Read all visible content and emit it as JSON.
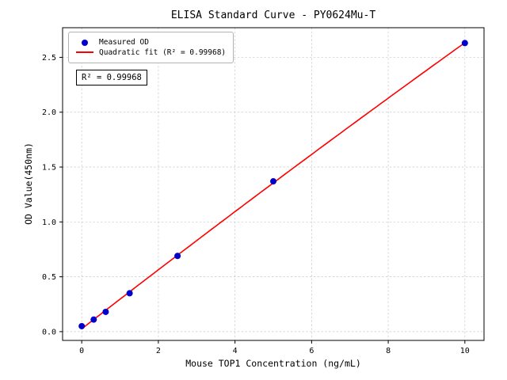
{
  "figure": {
    "title": "ELISA Standard Curve - PY0624Mu-T",
    "xlabel": "Mouse TOP1 Concentration (ng/mL)",
    "ylabel": "OD Value(450nm)",
    "annotation": "R² = 0.99968",
    "legend": [
      {
        "label": "Measured OD",
        "marker": "dot",
        "color": "#0000cd"
      },
      {
        "label": "Quadratic fit (R² = 0.99968)",
        "marker": "line",
        "color": "#ff0000"
      }
    ]
  },
  "chart_data": {
    "type": "scatter",
    "title": "ELISA Standard Curve - PY0624Mu-T",
    "xlabel": "Mouse TOP1 Concentration (ng/mL)",
    "ylabel": "OD Value(450nm)",
    "series": [
      {
        "name": "Measured OD",
        "type": "scatter",
        "color": "#0000cd",
        "x": [
          0,
          0.3125,
          0.625,
          1.25,
          2.5,
          5,
          10
        ],
        "y": [
          0.05,
          0.11,
          0.18,
          0.35,
          0.69,
          1.37,
          2.63
        ]
      },
      {
        "name": "Quadratic fit (R² = 0.99968)",
        "type": "line",
        "color": "#ff0000",
        "fit": "quadratic",
        "r_squared": 0.99968
      }
    ],
    "xlim": [
      -0.5,
      10.5
    ],
    "ylim": [
      -0.08,
      2.77
    ],
    "xticks": [
      0,
      2,
      4,
      6,
      8,
      10
    ],
    "xtick_labels": [
      "0",
      "2",
      "4",
      "6",
      "8",
      "10"
    ],
    "yticks": [
      0.0,
      0.5,
      1.0,
      1.5,
      2.0,
      2.5
    ],
    "ytick_labels": [
      "0.0",
      "0.5",
      "1.0",
      "1.5",
      "2.0",
      "2.5"
    ],
    "grid": true,
    "grid_style": "dashed",
    "legend_position": "upper left",
    "annotations": [
      "R² = 0.99968"
    ]
  }
}
